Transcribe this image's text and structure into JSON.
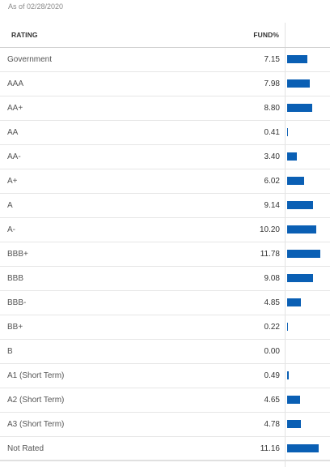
{
  "as_of": "As of 02/28/2020",
  "table": {
    "headers": {
      "rating": "RATING",
      "fund": "FUND%"
    },
    "bar_color": "#0a5fb4",
    "bar_scale_max": 11.78,
    "rows": [
      {
        "rating": "Government",
        "fund": "7.15",
        "value": 7.15
      },
      {
        "rating": "AAA",
        "fund": "7.98",
        "value": 7.98
      },
      {
        "rating": "AA+",
        "fund": "8.80",
        "value": 8.8
      },
      {
        "rating": "AA",
        "fund": "0.41",
        "value": 0.41
      },
      {
        "rating": "AA-",
        "fund": "3.40",
        "value": 3.4
      },
      {
        "rating": "A+",
        "fund": "6.02",
        "value": 6.02
      },
      {
        "rating": "A",
        "fund": "9.14",
        "value": 9.14
      },
      {
        "rating": "A-",
        "fund": "10.20",
        "value": 10.2
      },
      {
        "rating": "BBB+",
        "fund": "11.78",
        "value": 11.78
      },
      {
        "rating": "BBB",
        "fund": "9.08",
        "value": 9.08
      },
      {
        "rating": "BBB-",
        "fund": "4.85",
        "value": 4.85
      },
      {
        "rating": "BB+",
        "fund": "0.22",
        "value": 0.22
      },
      {
        "rating": "B",
        "fund": "0.00",
        "value": 0.0
      },
      {
        "rating": "A1 (Short Term)",
        "fund": "0.49",
        "value": 0.49
      },
      {
        "rating": "A2 (Short Term)",
        "fund": "4.65",
        "value": 4.65
      },
      {
        "rating": "A3 (Short Term)",
        "fund": "4.78",
        "value": 4.78
      },
      {
        "rating": "Not Rated",
        "fund": "11.16",
        "value": 11.16
      }
    ]
  }
}
